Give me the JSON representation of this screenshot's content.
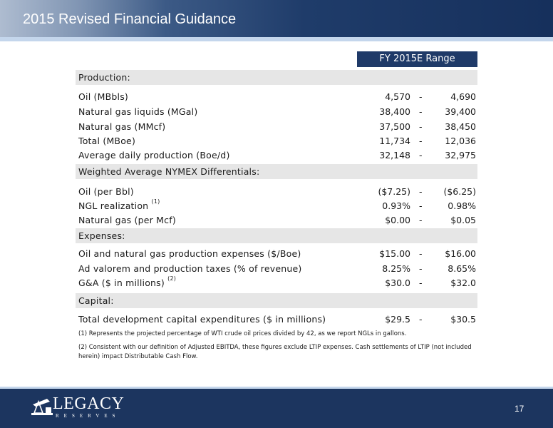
{
  "header": {
    "title": "2015 Revised Financial Guidance"
  },
  "table": {
    "range_header": "FY 2015E Range",
    "sections": {
      "production": {
        "label": "Production:",
        "rows": [
          {
            "label": "Oil (MBbls)",
            "low": "4,570",
            "dash": "-",
            "high": "4,690"
          },
          {
            "label": "Natural gas liquids (MGal)",
            "low": "38,400",
            "dash": "-",
            "high": "39,400"
          },
          {
            "label": "Natural gas (MMcf)",
            "low": "37,500",
            "dash": "-",
            "high": "38,450"
          },
          {
            "label": "Total (MBoe)",
            "low": "11,734",
            "dash": "-",
            "high": "12,036"
          },
          {
            "label": "Average daily production (Boe/d)",
            "low": "32,148",
            "dash": "-",
            "high": "32,975"
          }
        ]
      },
      "differentials": {
        "label": "Weighted Average NYMEX Differentials:",
        "rows": [
          {
            "label": "Oil (per Bbl)",
            "sup": "",
            "low": "($7.25)",
            "dash": "-",
            "high": "($6.25)"
          },
          {
            "label": "NGL realization",
            "sup": "(1)",
            "low": "0.93%",
            "dash": "-",
            "high": "0.98%"
          },
          {
            "label": "Natural gas (per Mcf)",
            "sup": "",
            "low": "$0.00",
            "dash": "-",
            "high": "$0.05"
          }
        ]
      },
      "expenses": {
        "label": "Expenses:",
        "rows": [
          {
            "label": "Oil and natural gas production expenses ($/Boe)",
            "sup": "",
            "low": "$15.00",
            "dash": "-",
            "high": "$16.00"
          },
          {
            "label": "Ad valorem and production taxes (% of revenue)",
            "sup": "",
            "low": "8.25%",
            "dash": "-",
            "high": "8.65%"
          },
          {
            "label": "G&A ($ in millions)",
            "sup": "(2)",
            "low": "$30.0",
            "dash": "-",
            "high": "$32.0"
          }
        ]
      },
      "capital": {
        "label": "Capital:",
        "rows": [
          {
            "label": "Total development capital expenditures ($ in millions)",
            "low": "$29.5",
            "dash": "-",
            "high": "$30.5"
          }
        ]
      }
    }
  },
  "footnotes": {
    "note1": "(1) Represents the projected percentage of WTI crude oil prices divided by 42, as we report NGLs in gallons.",
    "note2": "(2) Consistent with our definition of Adjusted EBITDA, these figures exclude LTIP expenses. Cash settlements of LTIP (not included herein) impact Distributable Cash Flow."
  },
  "footer": {
    "logo_text": "LEGACY",
    "logo_sub": "RESERVES",
    "page_number": "17"
  },
  "colors": {
    "header_dark": "#16305c",
    "range_header_bg": "#1f3a68",
    "section_bg": "#e6e6e6",
    "footer_bg": "#1c355f"
  }
}
